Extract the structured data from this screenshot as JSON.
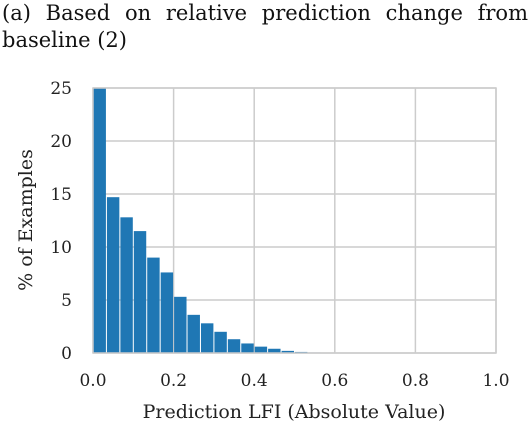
{
  "figure": {
    "caption": "(a) Based on relative prediction change from baseline (2)"
  },
  "chart_data": {
    "type": "bar",
    "xlabel": "Prediction LFI (Absolute Value)",
    "ylabel": "% of Examples",
    "xlim": [
      0,
      1.0
    ],
    "ylim": [
      0,
      25
    ],
    "xticks": [
      "0.0",
      "0.2",
      "0.4",
      "0.6",
      "0.8",
      "1.0"
    ],
    "yticks": [
      "0",
      "5",
      "10",
      "15",
      "20",
      "25"
    ],
    "grid": true,
    "bar_color": "#1f77b4",
    "bin_width": 0.0333,
    "bins_start": [
      0.0,
      0.0333,
      0.0667,
      0.1,
      0.1333,
      0.1667,
      0.2,
      0.2333,
      0.2667,
      0.3,
      0.3333,
      0.3667,
      0.4,
      0.4333,
      0.4667,
      0.5,
      0.5333,
      0.5667,
      0.6,
      0.6333,
      0.6667,
      0.7,
      0.7333,
      0.7667,
      0.8,
      0.8333,
      0.8667,
      0.9,
      0.9333,
      0.9667
    ],
    "values": [
      25.0,
      14.7,
      12.8,
      11.5,
      9.0,
      7.6,
      5.3,
      3.6,
      2.8,
      2.0,
      1.3,
      0.9,
      0.6,
      0.4,
      0.2,
      0.1,
      0.05,
      0.03,
      0.02,
      0.01,
      0,
      0,
      0,
      0,
      0,
      0,
      0,
      0,
      0,
      0
    ]
  }
}
